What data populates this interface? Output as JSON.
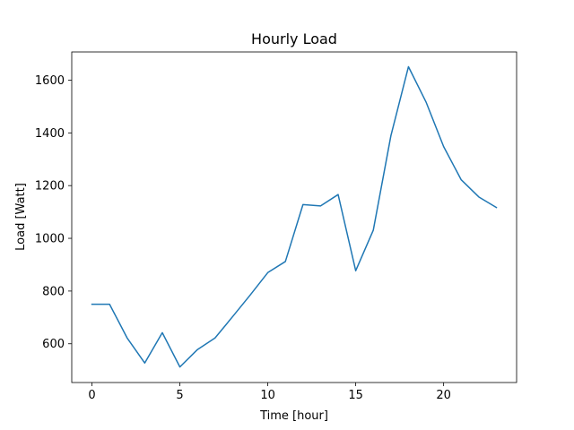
{
  "chart_data": {
    "type": "line",
    "title": "Hourly Load",
    "xlabel": "Time [hour]",
    "ylabel": "Load [Watt]",
    "xlim": [
      -1.15,
      24.15
    ],
    "ylim": [
      453,
      1707
    ],
    "xticks": [
      0,
      5,
      10,
      15,
      20
    ],
    "yticks": [
      600,
      800,
      1000,
      1200,
      1400,
      1600
    ],
    "grid": false,
    "colors": {
      "series": "#1f77b4"
    },
    "x": [
      0,
      1,
      2,
      3,
      4,
      5,
      6,
      7,
      8,
      9,
      10,
      11,
      12,
      13,
      14,
      15,
      16,
      17,
      18,
      19,
      20,
      21,
      22,
      23
    ],
    "series": [
      {
        "values": [
          750,
          750,
          622,
          527,
          642,
          512,
          578,
          622,
          703,
          785,
          870,
          912,
          1128,
          1123,
          1166,
          877,
          1031,
          1389,
          1651,
          1517,
          1348,
          1222,
          1157,
          1117
        ]
      }
    ]
  }
}
